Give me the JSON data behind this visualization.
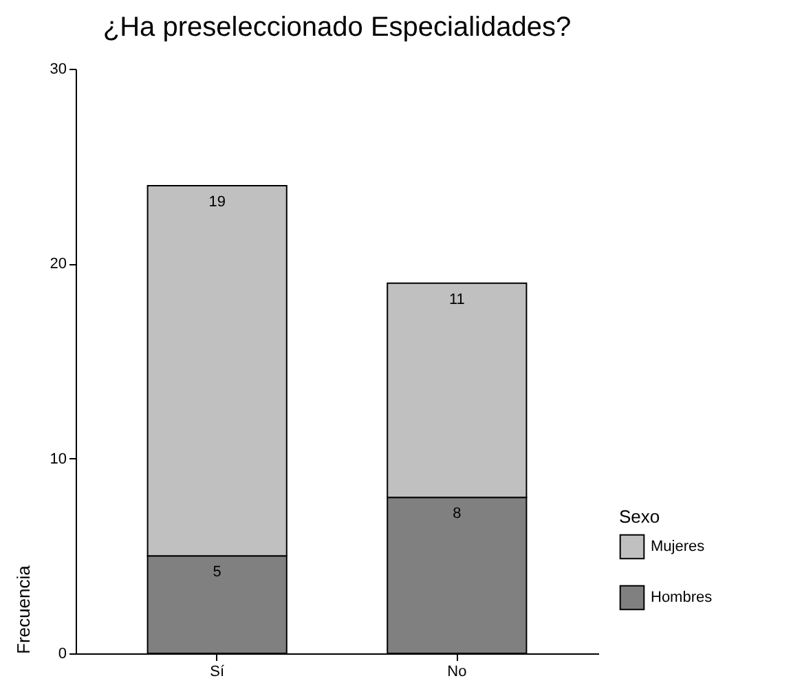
{
  "chart_data": {
    "type": "bar",
    "title": "¿Ha preseleccionado Especialidades?",
    "ylabel": "Frecuencia",
    "legend_title": "Sexo",
    "categories": [
      "Sí",
      "No"
    ],
    "stacked": true,
    "ylim": [
      0,
      30
    ],
    "yticks": [
      0,
      10,
      20,
      30
    ],
    "grid": false,
    "legend": "right",
    "data_labels": true,
    "series": [
      {
        "name": "Hombres",
        "color": "#808080",
        "values": [
          5,
          8
        ]
      },
      {
        "name": "Mujeres",
        "color": "#c0c0c0",
        "values": [
          19,
          11
        ]
      }
    ]
  }
}
